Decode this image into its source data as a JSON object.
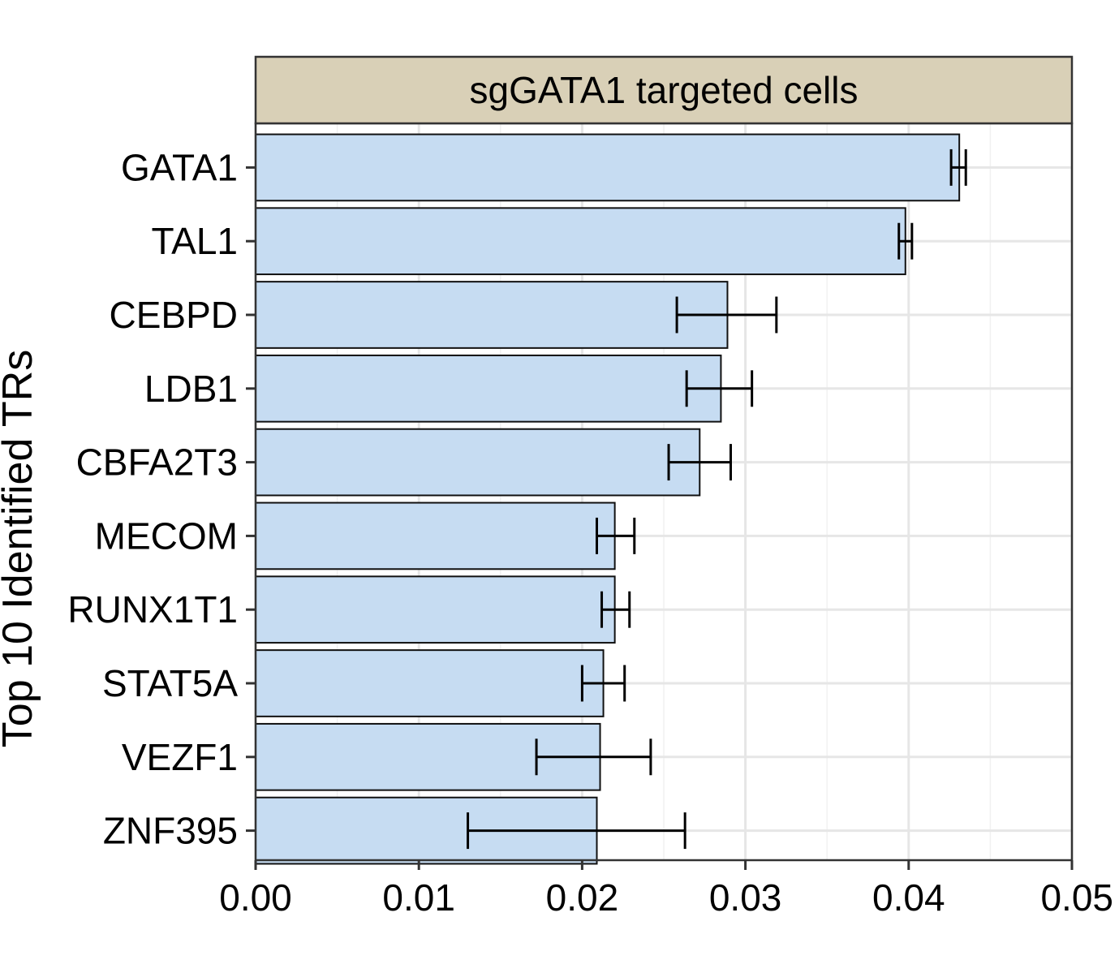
{
  "chart_data": {
    "type": "bar",
    "orientation": "horizontal",
    "facet_label": "sgGATA1 targeted cells",
    "ylabel": "Top 10 Identified TRs",
    "xlabel": "",
    "xlim": [
      0,
      0.05
    ],
    "x_ticks": [
      "0.00",
      "0.01",
      "0.02",
      "0.03",
      "0.04",
      "0.05"
    ],
    "x_tick_values": [
      0,
      0.01,
      0.02,
      0.03,
      0.04,
      0.05
    ],
    "grid": true,
    "colors": {
      "bar_fill": "#c6dcf2",
      "bar_stroke": "#111111",
      "facet_fill": "#d9d0b7",
      "grid": "#e6e6e6",
      "panel_border": "#333333"
    },
    "categories": [
      "GATA1",
      "TAL1",
      "CEBPD",
      "LDB1",
      "CBFA2T3",
      "MECOM",
      "RUNX1T1",
      "STAT5A",
      "VEZF1",
      "ZNF395"
    ],
    "values": [
      0.0431,
      0.0398,
      0.0289,
      0.0285,
      0.0272,
      0.022,
      0.022,
      0.0213,
      0.0211,
      0.0209
    ],
    "error_low": [
      0.0426,
      0.0394,
      0.0258,
      0.0264,
      0.0253,
      0.0209,
      0.0212,
      0.02,
      0.0172,
      0.013
    ],
    "error_high": [
      0.0435,
      0.0402,
      0.0319,
      0.0304,
      0.0291,
      0.0232,
      0.0229,
      0.0226,
      0.0242,
      0.0263
    ]
  }
}
